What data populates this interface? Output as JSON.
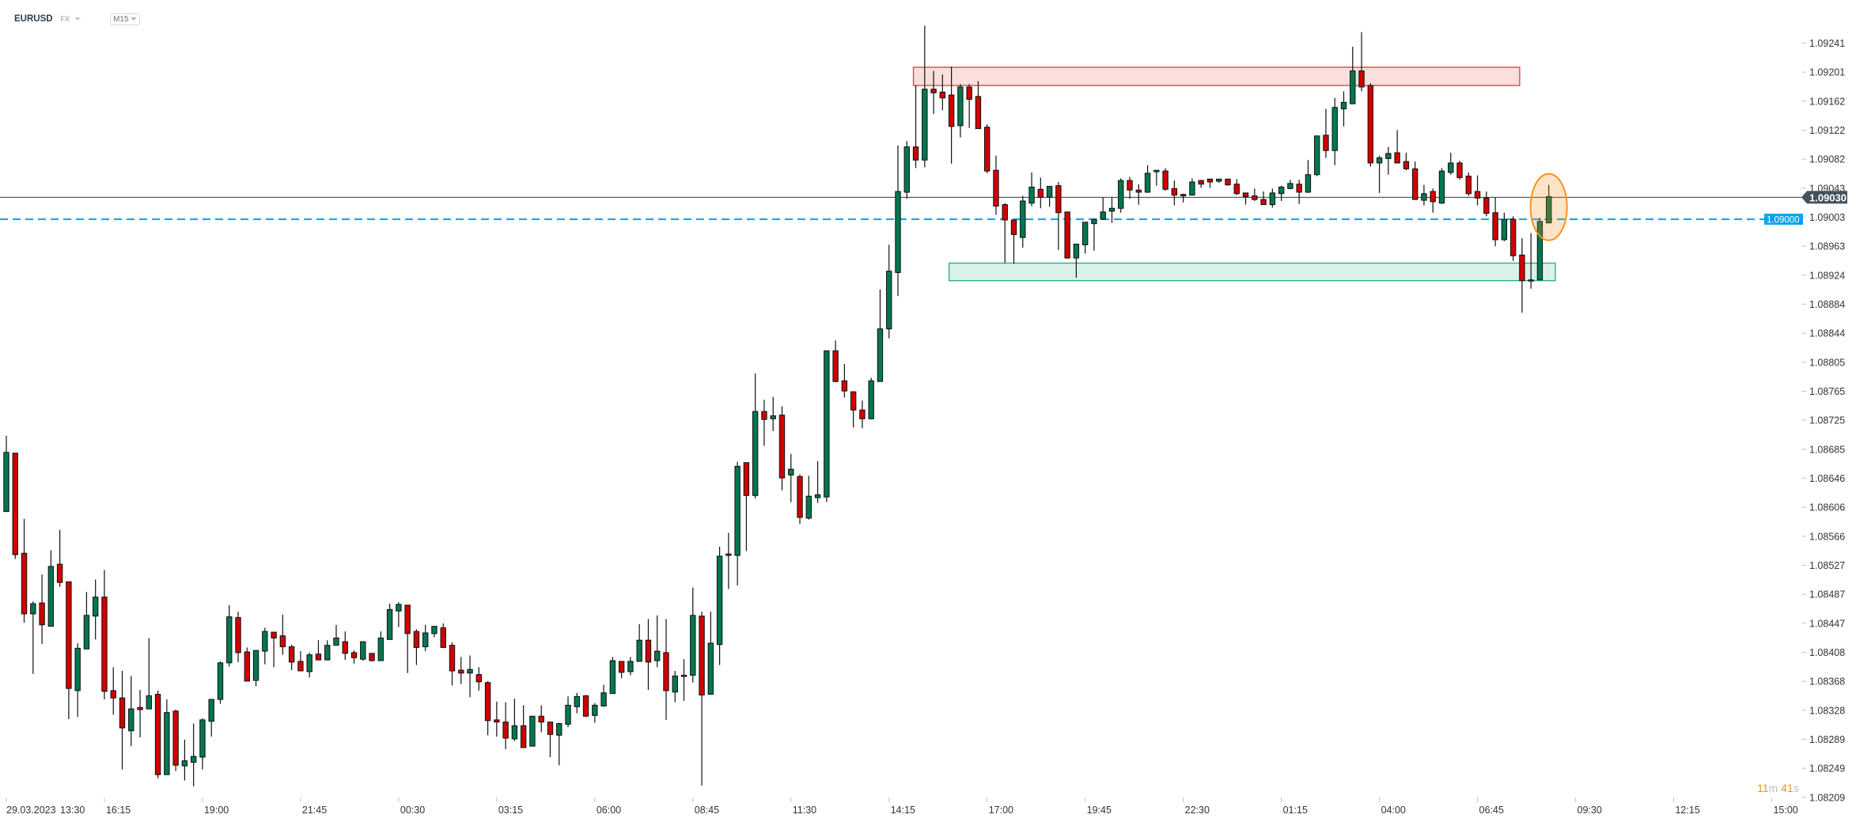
{
  "header": {
    "symbol": "EURUSD",
    "market": "FX",
    "timeframe": "M15"
  },
  "countdown": {
    "minutes": "11",
    "m_unit": "m",
    "seconds": "41",
    "s_unit": "s"
  },
  "colors": {
    "up": "#00774f",
    "down": "#d10000",
    "current_line": "#44525c",
    "alert_line": "#0aa2ec",
    "resistance_zone": "#e53935",
    "support_zone": "#1fae7a",
    "highlight": "#f7931e"
  },
  "price_lines": {
    "current": {
      "price": 1.0903,
      "label": "1.09030"
    },
    "alert": {
      "price": 1.09,
      "label": "1.09000"
    }
  },
  "countdown_text": "11m 41s",
  "chart_data": {
    "type": "candlestick",
    "interval": "M15",
    "ylim": [
      1.082,
      1.093
    ],
    "grid": false,
    "y_ticks": [
      "1.09241",
      "1.09201",
      "1.09162",
      "1.09122",
      "1.09082",
      "1.09043",
      "1.09003",
      "1.08963",
      "1.08924",
      "1.08884",
      "1.08844",
      "1.08805",
      "1.08765",
      "1.08725",
      "1.08685",
      "1.08646",
      "1.08606",
      "1.08566",
      "1.08527",
      "1.08487",
      "1.08447",
      "1.08408",
      "1.08368",
      "1.08328",
      "1.08289",
      "1.08249",
      "1.08209"
    ],
    "x_ticks": [
      {
        "i": 0,
        "label": "13:30",
        "date": "29.03.2023"
      },
      {
        "i": 11,
        "label": "16:15"
      },
      {
        "i": 22,
        "label": "19:00"
      },
      {
        "i": 33,
        "label": "21:45"
      },
      {
        "i": 44,
        "label": "00:30"
      },
      {
        "i": 55,
        "label": "03:15"
      },
      {
        "i": 66,
        "label": "06:00"
      },
      {
        "i": 77,
        "label": "08:45"
      },
      {
        "i": 88,
        "label": "11:30"
      },
      {
        "i": 99,
        "label": "14:15"
      },
      {
        "i": 110,
        "label": "17:00"
      },
      {
        "i": 121,
        "label": "19:45"
      },
      {
        "i": 132,
        "label": "22:30"
      },
      {
        "i": 143,
        "label": "01:15"
      },
      {
        "i": 154,
        "label": "04:00"
      },
      {
        "i": 165,
        "label": "06:45"
      },
      {
        "i": 176,
        "label": "09:30"
      },
      {
        "i": 187,
        "label": "12:15"
      },
      {
        "i": 198,
        "label": "15:00"
      }
    ],
    "zones": [
      {
        "name": "resistance",
        "from_i": 102,
        "to_i": 170,
        "low": 1.09183,
        "high": 1.09208
      },
      {
        "name": "support",
        "from_i": 106,
        "to_i": 174,
        "low": 1.08916,
        "high": 1.0894
      }
    ],
    "highlight_candle": 173,
    "ohlc": [
      [
        1.086,
        1.08704,
        1.086,
        1.08681
      ],
      [
        1.0868,
        1.0868,
        1.08535,
        1.08541
      ],
      [
        1.08543,
        1.0859,
        1.08448,
        1.0846
      ],
      [
        1.0846,
        1.08477,
        1.08378,
        1.08474
      ],
      [
        1.08475,
        1.08514,
        1.08419,
        1.08445
      ],
      [
        1.08443,
        1.08547,
        1.08443,
        1.08525
      ],
      [
        1.08528,
        1.08575,
        1.08497,
        1.08503
      ],
      [
        1.08504,
        1.08504,
        1.08316,
        1.08358
      ],
      [
        1.08355,
        1.0842,
        1.08319,
        1.08413
      ],
      [
        1.08412,
        1.0849,
        1.08412,
        1.08458
      ],
      [
        1.08457,
        1.08507,
        1.08425,
        1.08483
      ],
      [
        1.08483,
        1.0852,
        1.08343,
        1.08354
      ],
      [
        1.08355,
        1.08387,
        1.08322,
        1.08345
      ],
      [
        1.08345,
        1.08382,
        1.08247,
        1.08304
      ],
      [
        1.083,
        1.08375,
        1.08279,
        1.0833
      ],
      [
        1.08332,
        1.08356,
        1.08291,
        1.08329
      ],
      [
        1.0833,
        1.08427,
        1.0833,
        1.08348
      ],
      [
        1.0835,
        1.08355,
        1.08235,
        1.0824
      ],
      [
        1.0824,
        1.08343,
        1.0824,
        1.08325
      ],
      [
        1.08327,
        1.08329,
        1.08245,
        1.08253
      ],
      [
        1.08252,
        1.08288,
        1.08232,
        1.08259
      ],
      [
        1.08257,
        1.0831,
        1.08224,
        1.08265
      ],
      [
        1.08264,
        1.08317,
        1.08247,
        1.08315
      ],
      [
        1.08313,
        1.08343,
        1.08292,
        1.08343
      ],
      [
        1.08343,
        1.08395,
        1.08337,
        1.08393
      ],
      [
        1.08393,
        1.08472,
        1.08388,
        1.08456
      ],
      [
        1.08455,
        1.08463,
        1.08394,
        1.08407
      ],
      [
        1.08408,
        1.08414,
        1.08368,
        1.08368
      ],
      [
        1.08369,
        1.0841,
        1.08361,
        1.0841
      ],
      [
        1.08409,
        1.08441,
        1.08391,
        1.08436
      ],
      [
        1.08435,
        1.08435,
        1.08387,
        1.08427
      ],
      [
        1.0843,
        1.08459,
        1.08404,
        1.08415
      ],
      [
        1.08415,
        1.08418,
        1.08383,
        1.08394
      ],
      [
        1.08395,
        1.08409,
        1.08382,
        1.08382
      ],
      [
        1.08381,
        1.08407,
        1.08373,
        1.08404
      ],
      [
        1.08405,
        1.08424,
        1.08397,
        1.08397
      ],
      [
        1.08397,
        1.08424,
        1.08397,
        1.08417
      ],
      [
        1.08417,
        1.08445,
        1.08417,
        1.08427
      ],
      [
        1.08422,
        1.08436,
        1.08397,
        1.08406
      ],
      [
        1.08407,
        1.0841,
        1.08392,
        1.084
      ],
      [
        1.08398,
        1.08422,
        1.08396,
        1.08422
      ],
      [
        1.08406,
        1.08406,
        1.08395,
        1.08396
      ],
      [
        1.08396,
        1.08436,
        1.08396,
        1.08427
      ],
      [
        1.08425,
        1.08474,
        1.08425,
        1.08466
      ],
      [
        1.08464,
        1.08476,
        1.08442,
        1.08473
      ],
      [
        1.08472,
        1.08472,
        1.08379,
        1.08433
      ],
      [
        1.08436,
        1.08439,
        1.0839,
        1.08414
      ],
      [
        1.08415,
        1.08445,
        1.08409,
        1.08434
      ],
      [
        1.08433,
        1.08443,
        1.08428,
        1.08443
      ],
      [
        1.08441,
        1.08447,
        1.08414,
        1.08414
      ],
      [
        1.08417,
        1.08421,
        1.08362,
        1.08382
      ],
      [
        1.08383,
        1.08401,
        1.08364,
        1.08379
      ],
      [
        1.08379,
        1.08403,
        1.08346,
        1.08384
      ],
      [
        1.08377,
        1.08387,
        1.08355,
        1.08367
      ],
      [
        1.08366,
        1.08368,
        1.08294,
        1.08314
      ],
      [
        1.08315,
        1.0834,
        1.08292,
        1.08312
      ],
      [
        1.08312,
        1.08339,
        1.08275,
        1.0829
      ],
      [
        1.08289,
        1.08344,
        1.08286,
        1.08307
      ],
      [
        1.08307,
        1.08335,
        1.08277,
        1.08277
      ],
      [
        1.08279,
        1.0832,
        1.08279,
        1.0832
      ],
      [
        1.0832,
        1.08335,
        1.08298,
        1.08312
      ],
      [
        1.08312,
        1.08312,
        1.08264,
        1.08295
      ],
      [
        1.08294,
        1.08311,
        1.08253,
        1.0831
      ],
      [
        1.08309,
        1.08347,
        1.08305,
        1.08335
      ],
      [
        1.08333,
        1.08352,
        1.08324,
        1.08347
      ],
      [
        1.08348,
        1.08349,
        1.08319,
        1.0832
      ],
      [
        1.08321,
        1.08338,
        1.08311,
        1.08335
      ],
      [
        1.08334,
        1.08363,
        1.08333,
        1.08352
      ],
      [
        1.08351,
        1.08401,
        1.08351,
        1.08396
      ],
      [
        1.08395,
        1.08395,
        1.08372,
        1.0838
      ],
      [
        1.08381,
        1.08401,
        1.08376,
        1.08395
      ],
      [
        1.08395,
        1.08446,
        1.08395,
        1.08424
      ],
      [
        1.08424,
        1.08453,
        1.08356,
        1.08394
      ],
      [
        1.08396,
        1.08458,
        1.08387,
        1.08409
      ],
      [
        1.08407,
        1.08453,
        1.08315,
        1.08355
      ],
      [
        1.08353,
        1.08382,
        1.08339,
        1.08375
      ],
      [
        1.08376,
        1.08398,
        1.08341,
        1.08375
      ],
      [
        1.08376,
        1.08496,
        1.08366,
        1.08458
      ],
      [
        1.08457,
        1.08463,
        1.08225,
        1.08349
      ],
      [
        1.0835,
        1.08463,
        1.0835,
        1.0842
      ],
      [
        1.08418,
        1.08552,
        1.0839,
        1.08539
      ],
      [
        1.08542,
        1.08571,
        1.08494,
        1.0854
      ],
      [
        1.0854,
        1.08668,
        1.08499,
        1.08662
      ],
      [
        1.08667,
        1.08667,
        1.08546,
        1.08622
      ],
      [
        1.08622,
        1.08789,
        1.08618,
        1.08737
      ],
      [
        1.08737,
        1.08753,
        1.0869,
        1.08726
      ],
      [
        1.08727,
        1.08757,
        1.0871,
        1.08731
      ],
      [
        1.08732,
        1.08744,
        1.08629,
        1.08646
      ],
      [
        1.0865,
        1.08679,
        1.08613,
        1.08658
      ],
      [
        1.08648,
        1.08651,
        1.08583,
        1.08592
      ],
      [
        1.08591,
        1.08649,
        1.08589,
        1.08621
      ],
      [
        1.08619,
        1.08669,
        1.08612,
        1.08623
      ],
      [
        1.0862,
        1.0882,
        1.08613,
        1.0882
      ],
      [
        1.0882,
        1.08834,
        1.08777,
        1.08778
      ],
      [
        1.08779,
        1.08802,
        1.08756,
        1.08765
      ],
      [
        1.08764,
        1.08764,
        1.08715,
        1.08739
      ],
      [
        1.08739,
        1.08752,
        1.08714,
        1.08727
      ],
      [
        1.08727,
        1.08783,
        1.08726,
        1.08779
      ],
      [
        1.08778,
        1.08904,
        1.08778,
        1.0885
      ],
      [
        1.0885,
        1.08965,
        1.08837,
        1.08929
      ],
      [
        1.08927,
        1.09101,
        1.08895,
        1.09038
      ],
      [
        1.09037,
        1.09107,
        1.09028,
        1.09099
      ],
      [
        1.09099,
        1.09183,
        1.0907,
        1.09081
      ],
      [
        1.09081,
        1.09265,
        1.09071,
        1.09178
      ],
      [
        1.09178,
        1.09203,
        1.09144,
        1.09173
      ],
      [
        1.09174,
        1.09198,
        1.09149,
        1.09166
      ],
      [
        1.0917,
        1.09209,
        1.09076,
        1.09127
      ],
      [
        1.09128,
        1.09185,
        1.09112,
        1.09181
      ],
      [
        1.09181,
        1.09185,
        1.09125,
        1.09164
      ],
      [
        1.09168,
        1.09189,
        1.09124,
        1.09124
      ],
      [
        1.09126,
        1.0913,
        1.09063,
        1.09066
      ],
      [
        1.09067,
        1.09087,
        1.09006,
        1.09018
      ],
      [
        1.0902,
        1.09022,
        1.0894,
        1.08999
      ],
      [
        1.08999,
        1.08999,
        1.08939,
        1.08979
      ],
      [
        1.08975,
        1.09032,
        1.08961,
        1.09025
      ],
      [
        1.09022,
        1.09064,
        1.09018,
        1.09044
      ],
      [
        1.09041,
        1.09057,
        1.09015,
        1.0903
      ],
      [
        1.0903,
        1.09045,
        1.09017,
        1.09045
      ],
      [
        1.09046,
        1.09051,
        1.08958,
        1.09009
      ],
      [
        1.0901,
        1.0901,
        1.08946,
        1.08947
      ],
      [
        1.08947,
        1.08966,
        1.0892,
        1.08966
      ],
      [
        1.08965,
        1.08996,
        1.08953,
        1.08996
      ],
      [
        1.08994,
        1.09,
        1.08957,
        1.09
      ],
      [
        1.09,
        1.0903,
        1.08999,
        1.0901
      ],
      [
        1.09011,
        1.0903,
        1.08995,
        1.09015
      ],
      [
        1.09015,
        1.09056,
        1.09009,
        1.09053
      ],
      [
        1.09053,
        1.09058,
        1.09028,
        1.0904
      ],
      [
        1.0904,
        1.09048,
        1.0902,
        1.09037
      ],
      [
        1.09037,
        1.09074,
        1.09036,
        1.09063
      ],
      [
        1.09065,
        1.09067,
        1.09046,
        1.09067
      ],
      [
        1.09066,
        1.0907,
        1.09039,
        1.09041
      ],
      [
        1.09042,
        1.09053,
        1.09019,
        1.09033
      ],
      [
        1.09034,
        1.09035,
        1.09023,
        1.09032
      ],
      [
        1.09033,
        1.09056,
        1.09033,
        1.09051
      ],
      [
        1.09053,
        1.09054,
        1.09043,
        1.09048
      ],
      [
        1.09055,
        1.09055,
        1.09043,
        1.09051
      ],
      [
        1.09052,
        1.09055,
        1.0905,
        1.09055
      ],
      [
        1.09055,
        1.09055,
        1.09046,
        1.09047
      ],
      [
        1.09048,
        1.09055,
        1.09033,
        1.09035
      ],
      [
        1.09036,
        1.09036,
        1.0902,
        1.09031
      ],
      [
        1.09032,
        1.09042,
        1.09025,
        1.09027
      ],
      [
        1.09027,
        1.09038,
        1.0902,
        1.0902
      ],
      [
        1.0902,
        1.09042,
        1.09016,
        1.09036
      ],
      [
        1.09035,
        1.09046,
        1.09025,
        1.09044
      ],
      [
        1.09042,
        1.09054,
        1.09041,
        1.09049
      ],
      [
        1.09048,
        1.09054,
        1.09021,
        1.09037
      ],
      [
        1.09037,
        1.09081,
        1.09036,
        1.09061
      ],
      [
        1.09061,
        1.09114,
        1.09059,
        1.09114
      ],
      [
        1.09115,
        1.09151,
        1.09084,
        1.09094
      ],
      [
        1.09094,
        1.09166,
        1.09074,
        1.09153
      ],
      [
        1.09151,
        1.09175,
        1.09127,
        1.0916
      ],
      [
        1.09158,
        1.09236,
        1.09158,
        1.09203
      ],
      [
        1.09203,
        1.09256,
        1.09175,
        1.09181
      ],
      [
        1.09183,
        1.09186,
        1.09072,
        1.09077
      ],
      [
        1.09077,
        1.09087,
        1.09036,
        1.09084
      ],
      [
        1.09083,
        1.09099,
        1.09061,
        1.0909
      ],
      [
        1.09091,
        1.09122,
        1.09077,
        1.09077
      ],
      [
        1.09079,
        1.09091,
        1.09067,
        1.09069
      ],
      [
        1.09069,
        1.09079,
        1.09027,
        1.09027
      ],
      [
        1.09026,
        1.09047,
        1.09019,
        1.09035
      ],
      [
        1.09038,
        1.09042,
        1.09009,
        1.09024
      ],
      [
        1.09022,
        1.0907,
        1.09021,
        1.09066
      ],
      [
        1.09064,
        1.09091,
        1.09061,
        1.09077
      ],
      [
        1.09077,
        1.0908,
        1.09054,
        1.09057
      ],
      [
        1.09059,
        1.09064,
        1.09032,
        1.09035
      ],
      [
        1.09038,
        1.0906,
        1.09019,
        1.09029
      ],
      [
        1.09029,
        1.09038,
        1.09004,
        1.09008
      ],
      [
        1.09009,
        1.0903,
        1.08963,
        1.08972
      ],
      [
        1.08972,
        1.09009,
        1.0897,
        1.09
      ],
      [
        1.09,
        1.09004,
        1.08943,
        1.0895
      ],
      [
        1.08951,
        1.08974,
        1.08872,
        1.08916
      ],
      [
        1.08916,
        1.08981,
        1.08905,
        1.08917
      ],
      [
        1.08917,
        1.09002,
        1.08917,
        1.08997
      ],
      [
        1.08995,
        1.09047,
        1.08995,
        1.09031
      ]
    ]
  }
}
